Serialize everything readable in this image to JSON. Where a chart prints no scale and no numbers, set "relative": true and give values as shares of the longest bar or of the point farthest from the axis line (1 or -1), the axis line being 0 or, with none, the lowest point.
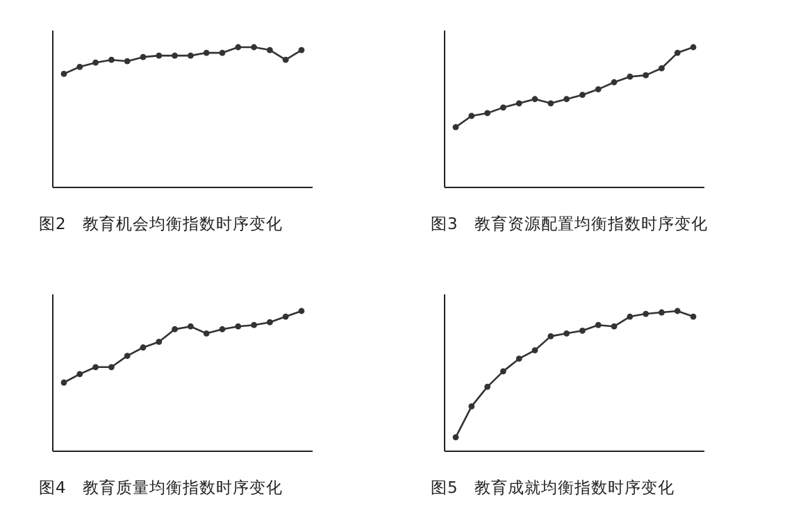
{
  "chart_data": [
    {
      "type": "line",
      "title": "图2　教育机会均衡指数时序变化",
      "relative": true,
      "marker": "circle",
      "categories": [
        null,
        null,
        null,
        null,
        null,
        null,
        null,
        null,
        null,
        null,
        null,
        null,
        null,
        null,
        null,
        null
      ],
      "series": [
        {
          "color": "#333333",
          "values": [
            0.81,
            0.86,
            0.89,
            0.91,
            0.9,
            0.93,
            0.94,
            0.94,
            0.94,
            0.96,
            0.96,
            1,
            1,
            0.98,
            0.91,
            0.98
          ]
        }
      ]
    },
    {
      "type": "line",
      "title": "图3　教育资源配置均衡指数时序变化",
      "relative": true,
      "marker": "circle",
      "categories": [
        null,
        null,
        null,
        null,
        null,
        null,
        null,
        null,
        null,
        null,
        null,
        null,
        null,
        null,
        null,
        null
      ],
      "series": [
        {
          "color": "#333333",
          "values": [
            0.43,
            0.51,
            0.53,
            0.57,
            0.6,
            0.63,
            0.6,
            0.63,
            0.66,
            0.7,
            0.75,
            0.79,
            0.8,
            0.85,
            0.96,
            1
          ]
        }
      ]
    },
    {
      "type": "line",
      "title": "图4　教育质量均衡指数时序变化",
      "relative": true,
      "marker": "circle",
      "categories": [
        null,
        null,
        null,
        null,
        null,
        null,
        null,
        null,
        null,
        null,
        null,
        null,
        null,
        null,
        null,
        null
      ],
      "series": [
        {
          "color": "#333333",
          "values": [
            0.49,
            0.55,
            0.6,
            0.6,
            0.68,
            0.74,
            0.78,
            0.87,
            0.89,
            0.84,
            0.87,
            0.89,
            0.9,
            0.92,
            0.96,
            1
          ]
        }
      ]
    },
    {
      "type": "line",
      "title": "图5　教育成就均衡指数时序变化",
      "relative": true,
      "marker": "circle",
      "categories": [
        null,
        null,
        null,
        null,
        null,
        null,
        null,
        null,
        null,
        null,
        null,
        null,
        null,
        null,
        null,
        null
      ],
      "series": [
        {
          "color": "#333333",
          "values": [
            0.1,
            0.32,
            0.46,
            0.57,
            0.66,
            0.72,
            0.82,
            0.84,
            0.86,
            0.9,
            0.89,
            0.96,
            0.98,
            0.99,
            1,
            0.96
          ]
        }
      ]
    }
  ]
}
